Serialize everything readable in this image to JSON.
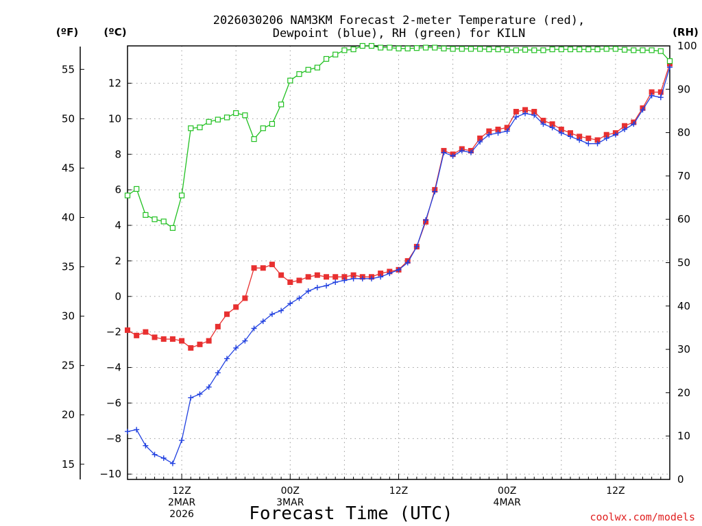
{
  "chart_data": {
    "type": "line",
    "title": "2026030206 NAM3KM Forecast 2-meter Temperature (red),",
    "subtitle": "Dewpoint (blue), RH (green) for KILN",
    "xlabel": "Forecast Time (UTC)",
    "credit": "coolwx.com/models",
    "left_unit_f": "(ºF)",
    "left_unit_c": "(ºC)",
    "right_unit": "(RH)",
    "x_range_hours": [
      6,
      66
    ],
    "y_range_c": [
      -10.3,
      14.1
    ],
    "y_range_rh": [
      0,
      100
    ],
    "f_ticks": [
      "15",
      "20",
      "25",
      "30",
      "35",
      "40",
      "45",
      "50",
      "55"
    ],
    "f_tick_values": [
      15,
      20,
      25,
      30,
      35,
      40,
      45,
      50,
      55
    ],
    "c_ticks": [
      "−10",
      "−8",
      "−6",
      "−4",
      "−2",
      "0",
      "2",
      "4",
      "6",
      "8",
      "10",
      "12"
    ],
    "c_tick_values": [
      -10,
      -8,
      -6,
      -4,
      -2,
      0,
      2,
      4,
      6,
      8,
      10,
      12
    ],
    "rh_ticks": [
      "0",
      "10",
      "20",
      "30",
      "40",
      "50",
      "60",
      "70",
      "80",
      "90",
      "100"
    ],
    "rh_tick_values": [
      0,
      10,
      20,
      30,
      40,
      50,
      60,
      70,
      80,
      90,
      100
    ],
    "x_ticks": [
      {
        "hour": 12,
        "lines": [
          "12Z",
          "2MAR",
          "2026"
        ]
      },
      {
        "hour": 24,
        "lines": [
          "00Z",
          "3MAR"
        ]
      },
      {
        "hour": 36,
        "lines": [
          "12Z"
        ]
      },
      {
        "hour": 48,
        "lines": [
          "00Z",
          "4MAR"
        ]
      },
      {
        "hour": 60,
        "lines": [
          "12Z"
        ]
      }
    ],
    "grid": true,
    "x": [
      6,
      7,
      8,
      9,
      10,
      11,
      12,
      13,
      14,
      15,
      16,
      17,
      18,
      19,
      20,
      21,
      22,
      23,
      24,
      25,
      26,
      27,
      28,
      29,
      30,
      31,
      32,
      33,
      34,
      35,
      36,
      37,
      38,
      39,
      40,
      41,
      42,
      43,
      44,
      45,
      46,
      47,
      48,
      49,
      50,
      51,
      52,
      53,
      54,
      55,
      56,
      57,
      58,
      59,
      60,
      61,
      62,
      63,
      64,
      65,
      66
    ],
    "series": [
      {
        "name": "Temperature",
        "unit": "C",
        "color": "#e83030",
        "marker": "filled-square",
        "values": [
          -1.9,
          -2.2,
          -2.0,
          -2.3,
          -2.4,
          -2.4,
          -2.5,
          -2.9,
          -2.7,
          -2.5,
          -1.7,
          -1.0,
          -0.6,
          -0.1,
          1.6,
          1.6,
          1.8,
          1.2,
          0.8,
          0.9,
          1.1,
          1.2,
          1.1,
          1.1,
          1.1,
          1.2,
          1.1,
          1.1,
          1.3,
          1.4,
          1.5,
          2.0,
          2.8,
          4.2,
          6.0,
          8.2,
          8.0,
          8.3,
          8.2,
          8.9,
          9.3,
          9.4,
          9.5,
          10.4,
          10.5,
          10.4,
          9.9,
          9.7,
          9.4,
          9.2,
          9.0,
          8.9,
          8.8,
          9.1,
          9.2,
          9.6,
          9.8,
          10.6,
          11.5,
          11.5,
          13.1
        ]
      },
      {
        "name": "Dewpoint",
        "unit": "C",
        "color": "#2040e0",
        "marker": "plus",
        "values": [
          -7.6,
          -7.5,
          -8.4,
          -8.9,
          -9.1,
          -9.4,
          -8.1,
          -5.7,
          -5.5,
          -5.1,
          -4.3,
          -3.5,
          -2.9,
          -2.5,
          -1.8,
          -1.4,
          -1.0,
          -0.8,
          -0.4,
          -0.1,
          0.3,
          0.5,
          0.6,
          0.8,
          0.9,
          1.0,
          1.0,
          1.0,
          1.1,
          1.3,
          1.5,
          1.9,
          2.8,
          4.3,
          5.9,
          8.1,
          7.9,
          8.2,
          8.1,
          8.7,
          9.1,
          9.2,
          9.3,
          10.1,
          10.3,
          10.2,
          9.7,
          9.5,
          9.2,
          9.0,
          8.8,
          8.6,
          8.6,
          8.9,
          9.1,
          9.4,
          9.7,
          10.5,
          11.3,
          11.2,
          12.9
        ]
      },
      {
        "name": "RH",
        "unit": "%",
        "color": "#20c020",
        "marker": "open-square",
        "values": [
          65.5,
          67.0,
          61.0,
          60.0,
          59.5,
          58.0,
          65.5,
          81.0,
          81.2,
          82.5,
          83.0,
          83.5,
          84.5,
          84.0,
          78.5,
          81.0,
          82.0,
          86.5,
          92.0,
          93.5,
          94.5,
          95.0,
          97.0,
          98.0,
          99.0,
          99.2,
          100.0,
          100.0,
          99.6,
          99.6,
          99.4,
          99.4,
          99.5,
          99.6,
          99.6,
          99.4,
          99.3,
          99.3,
          99.3,
          99.3,
          99.2,
          99.2,
          99.1,
          99.0,
          99.1,
          99.0,
          99.0,
          99.2,
          99.2,
          99.2,
          99.2,
          99.2,
          99.2,
          99.3,
          99.3,
          99.1,
          99.0,
          99.0,
          99.0,
          98.8,
          96.5
        ]
      }
    ]
  }
}
